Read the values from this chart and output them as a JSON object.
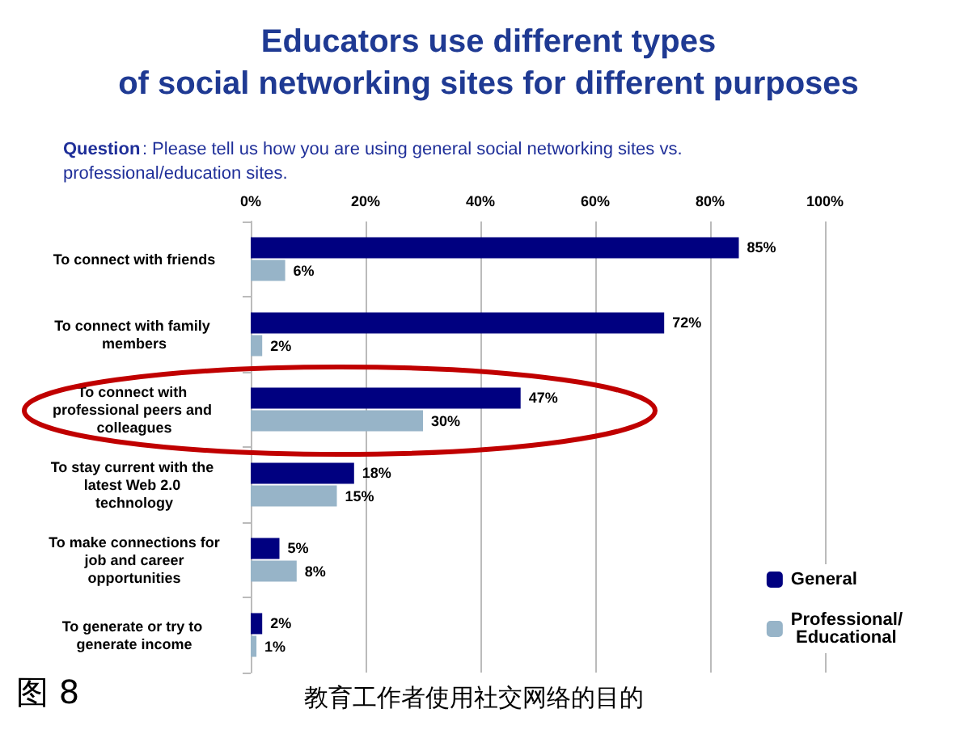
{
  "chart_data": {
    "type": "bar",
    "orientation": "horizontal",
    "title": "Educators use different types\nof social networking sites for different purposes",
    "subtitle": "Question: Please tell us how you are using general social networking sites vs. professional/education sites.",
    "categories": [
      "To connect with friends",
      "To connect with family members",
      "To connect with professional peers and colleagues",
      "To stay current with the latest Web 2.0 technology",
      "To make connections for job and career opportunities",
      "To generate or try to generate income"
    ],
    "series": [
      {
        "name": "General",
        "color": "#000080",
        "values": [
          85,
          72,
          47,
          18,
          5,
          2
        ],
        "value_labels": [
          "85%",
          "72%",
          "47%",
          "18%",
          "5%",
          "2%"
        ]
      },
      {
        "name": "Professional/ Educational",
        "color": "#97b4c8",
        "values": [
          6,
          2,
          30,
          15,
          8,
          1
        ],
        "value_labels": [
          "6%",
          "2%",
          "30%",
          "15%",
          "8%",
          "1%"
        ]
      }
    ],
    "xlim": [
      0,
      100
    ],
    "xticks": [
      {
        "value": 0,
        "label": "0%"
      },
      {
        "value": 20,
        "label": "20%"
      },
      {
        "value": 40,
        "label": "40%"
      },
      {
        "value": 60,
        "label": "60%"
      },
      {
        "value": 80,
        "label": "80%"
      },
      {
        "value": 100,
        "label": "100%"
      }
    ],
    "grid": "x",
    "legend": "bottom right",
    "annotations": [
      "图 8",
      "教育工作者使用社交网络的目的"
    ]
  }
}
